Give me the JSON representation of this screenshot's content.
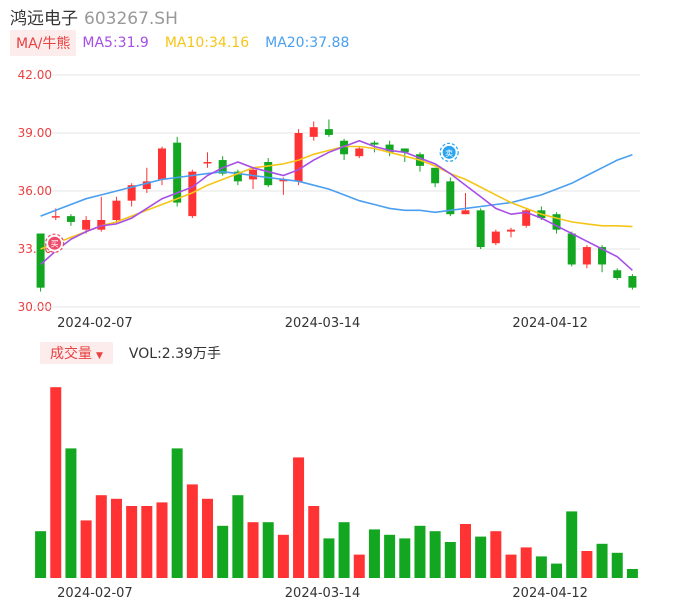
{
  "stock": {
    "name": "鸿远电子",
    "code": "603267.SH"
  },
  "ma_bar": {
    "button": "MA/牛熊",
    "ma5": "MA5:31.9",
    "ma10": "MA10:34.16",
    "ma20": "MA20:37.88"
  },
  "volume_bar": {
    "button": "成交量",
    "text": "VOL:2.39万手"
  },
  "colors": {
    "up": "#ff3333",
    "down": "#12a621",
    "ma5": "#a64ee6",
    "ma10": "#f5c518",
    "ma20": "#4a9ff0",
    "axis_text": "#e94040"
  },
  "markers": {
    "buy_icon": "buy-marker-icon",
    "sell_icon": "sell-marker-icon",
    "buy_label": "买",
    "sell_label": "卖"
  },
  "chart_data": [
    {
      "type": "candlestick",
      "y_ticks": [
        "42.00",
        "39.00",
        "36.00",
        "33.00",
        "30.00"
      ],
      "ylim": [
        30,
        42
      ],
      "x_tick_labels": [
        {
          "index": 2,
          "label": "2024-02-07"
        },
        {
          "index": 17,
          "label": "2024-03-14"
        },
        {
          "index": 32,
          "label": "2024-04-12"
        }
      ],
      "candles": [
        [
          33.8,
          31.0,
          33.8,
          30.8
        ],
        [
          34.7,
          34.7,
          35.1,
          34.5
        ],
        [
          34.7,
          34.4,
          34.8,
          34.2
        ],
        [
          34.0,
          34.5,
          34.7,
          33.8
        ],
        [
          34.0,
          34.5,
          35.7,
          33.9
        ],
        [
          34.5,
          35.5,
          35.7,
          34.3
        ],
        [
          35.5,
          36.3,
          36.4,
          35.2
        ],
        [
          36.1,
          36.5,
          37.2,
          35.9
        ],
        [
          36.6,
          38.2,
          38.3,
          36.3
        ],
        [
          38.5,
          35.4,
          38.8,
          35.2
        ],
        [
          34.7,
          37.0,
          37.1,
          34.6
        ],
        [
          37.5,
          37.5,
          38.0,
          37.2
        ],
        [
          37.6,
          36.9,
          37.8,
          36.8
        ],
        [
          37.0,
          36.5,
          37.1,
          36.3
        ],
        [
          36.6,
          37.1,
          37.2,
          36.1
        ],
        [
          37.5,
          36.3,
          37.7,
          36.2
        ],
        [
          36.5,
          36.6,
          36.7,
          35.8
        ],
        [
          36.5,
          39.0,
          39.2,
          36.3
        ],
        [
          38.8,
          39.3,
          39.6,
          38.6
        ],
        [
          39.2,
          38.9,
          39.7,
          38.8
        ],
        [
          38.6,
          37.9,
          38.7,
          37.6
        ],
        [
          37.8,
          38.2,
          38.3,
          37.7
        ],
        [
          38.5,
          38.4,
          38.6,
          38.0
        ],
        [
          38.4,
          38.0,
          38.6,
          37.8
        ],
        [
          38.2,
          38.0,
          38.2,
          37.5
        ],
        [
          37.9,
          37.3,
          38.0,
          37.0
        ],
        [
          37.2,
          36.4,
          37.2,
          36.2
        ],
        [
          36.5,
          34.8,
          36.7,
          34.7
        ],
        [
          34.8,
          35.0,
          35.9,
          34.8
        ],
        [
          35.0,
          33.1,
          35.1,
          33.0
        ],
        [
          33.3,
          33.9,
          34.0,
          33.2
        ],
        [
          33.9,
          34.0,
          34.1,
          33.6
        ],
        [
          34.2,
          35.0,
          35.1,
          34.1
        ],
        [
          35.0,
          34.6,
          35.2,
          34.5
        ],
        [
          34.8,
          34.0,
          34.9,
          33.8
        ],
        [
          33.8,
          32.2,
          33.9,
          32.1
        ],
        [
          32.2,
          33.1,
          33.2,
          32.0
        ],
        [
          33.1,
          32.2,
          33.2,
          31.8
        ],
        [
          31.9,
          31.5,
          32.0,
          31.4
        ],
        [
          31.6,
          31.0,
          31.7,
          30.9
        ]
      ],
      "ma5": [
        32.2,
        32.9,
        33.5,
        33.9,
        34.2,
        34.3,
        34.6,
        35.1,
        35.6,
        35.9,
        36.2,
        36.8,
        37.2,
        37.5,
        37.2,
        37.0,
        36.8,
        37.1,
        37.6,
        38.0,
        38.3,
        38.6,
        38.3,
        38.1,
        38.0,
        37.7,
        37.4,
        36.9,
        36.3,
        35.7,
        35.1,
        34.8,
        34.9,
        34.6,
        34.2,
        33.8,
        33.4,
        33.0,
        32.6,
        31.9
      ],
      "ma10": [
        33.0,
        33.3,
        33.6,
        33.9,
        34.2,
        34.4,
        34.7,
        35.0,
        35.3,
        35.6,
        35.9,
        36.3,
        36.6,
        36.9,
        37.2,
        37.3,
        37.4,
        37.6,
        37.9,
        38.1,
        38.3,
        38.3,
        38.2,
        38.0,
        37.8,
        37.6,
        37.3,
        36.9,
        36.6,
        36.2,
        35.8,
        35.4,
        35.1,
        34.8,
        34.6,
        34.4,
        34.3,
        34.2,
        34.2,
        34.16
      ],
      "ma20": [
        34.7,
        35.0,
        35.3,
        35.6,
        35.8,
        36.0,
        36.2,
        36.4,
        36.6,
        36.7,
        36.8,
        36.9,
        37.0,
        36.9,
        36.8,
        36.7,
        36.6,
        36.5,
        36.3,
        36.1,
        35.8,
        35.5,
        35.3,
        35.1,
        35.0,
        35.0,
        34.9,
        35.0,
        35.1,
        35.2,
        35.3,
        35.4,
        35.6,
        35.8,
        36.1,
        36.4,
        36.8,
        37.2,
        37.6,
        37.88
      ],
      "markers": [
        {
          "index": 0,
          "price": 33.3,
          "kind": "buy"
        },
        {
          "index": 26,
          "price": 38.0,
          "kind": "sell"
        }
      ]
    },
    {
      "type": "bar",
      "title": "成交量",
      "x_tick_labels": [
        {
          "index": 2,
          "label": "2024-02-07"
        },
        {
          "index": 17,
          "label": "2024-03-14"
        },
        {
          "index": 32,
          "label": "2024-04-12"
        }
      ],
      "values": [
        2.6,
        10.6,
        7.2,
        3.2,
        4.6,
        4.4,
        4.0,
        4.0,
        4.2,
        7.2,
        5.2,
        4.4,
        2.9,
        4.6,
        3.1,
        3.1,
        2.4,
        6.7,
        4.0,
        2.2,
        3.1,
        1.3,
        2.7,
        2.4,
        2.2,
        2.9,
        2.6,
        2.0,
        3.0,
        2.3,
        2.6,
        1.3,
        1.7,
        1.2,
        0.8,
        3.7,
        1.5,
        1.9,
        1.4,
        0.5
      ]
    }
  ]
}
